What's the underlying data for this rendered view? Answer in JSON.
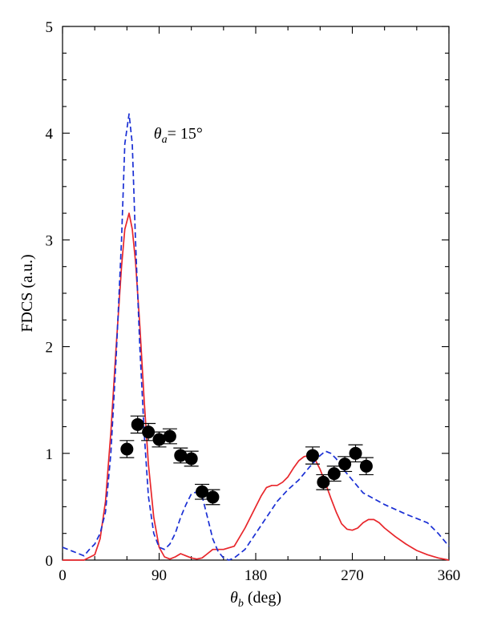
{
  "chart_data": {
    "type": "line",
    "title": "",
    "xlabel": {
      "symbol": "θ",
      "sub": "b",
      "rest": " (deg)"
    },
    "ylabel": "FDCS (a.u.)",
    "xlim": [
      0,
      360
    ],
    "ylim": [
      0,
      5
    ],
    "xticks": [
      0,
      90,
      180,
      270,
      360
    ],
    "yticks": [
      0,
      1,
      2,
      3,
      4,
      5
    ],
    "grid": false,
    "legend": "none",
    "annotation": {
      "symbol": "θ",
      "sub": "a",
      "rest": "= 15°",
      "x": 85,
      "y": 4.0
    },
    "series": [
      {
        "style": "solid",
        "color": "#e8262b",
        "x": [
          0,
          10,
          20,
          30,
          35,
          40,
          45,
          50,
          55,
          58,
          62,
          65,
          68,
          72,
          76,
          80,
          85,
          90,
          95,
          100,
          105,
          110,
          115,
          120,
          125,
          130,
          135,
          140,
          150,
          160,
          170,
          180,
          185,
          190,
          195,
          200,
          205,
          210,
          215,
          220,
          225,
          230,
          235,
          240,
          245,
          250,
          255,
          260,
          265,
          270,
          275,
          280,
          285,
          290,
          295,
          300,
          310,
          320,
          330,
          340,
          350,
          360
        ],
        "y": [
          0.0,
          0.0,
          0.0,
          0.05,
          0.2,
          0.55,
          1.2,
          2.0,
          2.75,
          3.1,
          3.25,
          3.1,
          2.8,
          2.2,
          1.5,
          0.9,
          0.4,
          0.12,
          0.03,
          0.01,
          0.03,
          0.06,
          0.04,
          0.02,
          0.01,
          0.02,
          0.06,
          0.1,
          0.1,
          0.13,
          0.3,
          0.5,
          0.6,
          0.68,
          0.7,
          0.7,
          0.73,
          0.78,
          0.86,
          0.93,
          0.97,
          0.98,
          0.95,
          0.85,
          0.72,
          0.58,
          0.45,
          0.34,
          0.29,
          0.28,
          0.3,
          0.35,
          0.38,
          0.38,
          0.35,
          0.3,
          0.22,
          0.15,
          0.09,
          0.05,
          0.02,
          0.0
        ]
      },
      {
        "style": "dashed",
        "color": "#1a2fd4",
        "x": [
          0,
          10,
          20,
          25,
          30,
          35,
          40,
          45,
          50,
          55,
          58,
          62,
          65,
          68,
          72,
          76,
          80,
          85,
          90,
          95,
          100,
          105,
          110,
          115,
          120,
          125,
          130,
          135,
          140,
          145,
          150,
          155,
          160,
          170,
          180,
          190,
          200,
          210,
          220,
          230,
          240,
          245,
          250,
          255,
          260,
          270,
          280,
          300,
          320,
          340,
          350,
          360
        ],
        "y": [
          0.12,
          0.08,
          0.04,
          0.1,
          0.15,
          0.25,
          0.45,
          1.0,
          1.9,
          3.0,
          3.9,
          4.18,
          3.9,
          3.0,
          2.0,
          1.2,
          0.6,
          0.25,
          0.12,
          0.1,
          0.15,
          0.25,
          0.4,
          0.52,
          0.62,
          0.64,
          0.6,
          0.4,
          0.2,
          0.08,
          0.02,
          0.0,
          0.02,
          0.1,
          0.25,
          0.4,
          0.55,
          0.66,
          0.75,
          0.87,
          0.98,
          1.02,
          1.0,
          0.95,
          0.87,
          0.75,
          0.63,
          0.52,
          0.43,
          0.35,
          0.25,
          0.13
        ]
      }
    ],
    "points": {
      "x": [
        60,
        70,
        80,
        90,
        100,
        110,
        120,
        130,
        140,
        233,
        243,
        253,
        263,
        273,
        283
      ],
      "y": [
        1.04,
        1.27,
        1.2,
        1.13,
        1.16,
        0.98,
        0.95,
        0.64,
        0.59,
        0.98,
        0.73,
        0.81,
        0.9,
        1.0,
        0.88
      ],
      "err": [
        0.08,
        0.08,
        0.08,
        0.07,
        0.07,
        0.07,
        0.07,
        0.07,
        0.07,
        0.08,
        0.07,
        0.07,
        0.07,
        0.08,
        0.08
      ]
    }
  }
}
